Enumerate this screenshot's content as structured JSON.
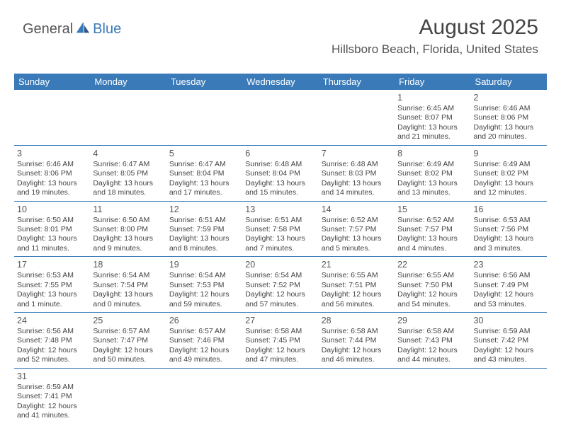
{
  "logo": {
    "part1": "General",
    "part2": "Blue"
  },
  "header": {
    "title": "August 2025",
    "location": "Hillsboro Beach, Florida, United States"
  },
  "colors": {
    "header_bg": "#3a7ab8",
    "header_fg": "#ffffff",
    "cell_border": "#3a7ab8",
    "text": "#444444",
    "logo_gray": "#555555",
    "logo_blue": "#3a7ab8",
    "page_bg": "#ffffff"
  },
  "typography": {
    "title_fontsize": 30,
    "location_fontsize": 17,
    "header_cell_fontsize": 13,
    "daynum_fontsize": 12.5,
    "body_fontsize": 10.5
  },
  "calendar": {
    "columns": [
      "Sunday",
      "Monday",
      "Tuesday",
      "Wednesday",
      "Thursday",
      "Friday",
      "Saturday"
    ],
    "weeks": [
      [
        null,
        null,
        null,
        null,
        null,
        {
          "day": "1",
          "sunrise": "Sunrise: 6:45 AM",
          "sunset": "Sunset: 8:07 PM",
          "daylight": "Daylight: 13 hours and 21 minutes."
        },
        {
          "day": "2",
          "sunrise": "Sunrise: 6:46 AM",
          "sunset": "Sunset: 8:06 PM",
          "daylight": "Daylight: 13 hours and 20 minutes."
        }
      ],
      [
        {
          "day": "3",
          "sunrise": "Sunrise: 6:46 AM",
          "sunset": "Sunset: 8:06 PM",
          "daylight": "Daylight: 13 hours and 19 minutes."
        },
        {
          "day": "4",
          "sunrise": "Sunrise: 6:47 AM",
          "sunset": "Sunset: 8:05 PM",
          "daylight": "Daylight: 13 hours and 18 minutes."
        },
        {
          "day": "5",
          "sunrise": "Sunrise: 6:47 AM",
          "sunset": "Sunset: 8:04 PM",
          "daylight": "Daylight: 13 hours and 17 minutes."
        },
        {
          "day": "6",
          "sunrise": "Sunrise: 6:48 AM",
          "sunset": "Sunset: 8:04 PM",
          "daylight": "Daylight: 13 hours and 15 minutes."
        },
        {
          "day": "7",
          "sunrise": "Sunrise: 6:48 AM",
          "sunset": "Sunset: 8:03 PM",
          "daylight": "Daylight: 13 hours and 14 minutes."
        },
        {
          "day": "8",
          "sunrise": "Sunrise: 6:49 AM",
          "sunset": "Sunset: 8:02 PM",
          "daylight": "Daylight: 13 hours and 13 minutes."
        },
        {
          "day": "9",
          "sunrise": "Sunrise: 6:49 AM",
          "sunset": "Sunset: 8:02 PM",
          "daylight": "Daylight: 13 hours and 12 minutes."
        }
      ],
      [
        {
          "day": "10",
          "sunrise": "Sunrise: 6:50 AM",
          "sunset": "Sunset: 8:01 PM",
          "daylight": "Daylight: 13 hours and 11 minutes."
        },
        {
          "day": "11",
          "sunrise": "Sunrise: 6:50 AM",
          "sunset": "Sunset: 8:00 PM",
          "daylight": "Daylight: 13 hours and 9 minutes."
        },
        {
          "day": "12",
          "sunrise": "Sunrise: 6:51 AM",
          "sunset": "Sunset: 7:59 PM",
          "daylight": "Daylight: 13 hours and 8 minutes."
        },
        {
          "day": "13",
          "sunrise": "Sunrise: 6:51 AM",
          "sunset": "Sunset: 7:58 PM",
          "daylight": "Daylight: 13 hours and 7 minutes."
        },
        {
          "day": "14",
          "sunrise": "Sunrise: 6:52 AM",
          "sunset": "Sunset: 7:57 PM",
          "daylight": "Daylight: 13 hours and 5 minutes."
        },
        {
          "day": "15",
          "sunrise": "Sunrise: 6:52 AM",
          "sunset": "Sunset: 7:57 PM",
          "daylight": "Daylight: 13 hours and 4 minutes."
        },
        {
          "day": "16",
          "sunrise": "Sunrise: 6:53 AM",
          "sunset": "Sunset: 7:56 PM",
          "daylight": "Daylight: 13 hours and 3 minutes."
        }
      ],
      [
        {
          "day": "17",
          "sunrise": "Sunrise: 6:53 AM",
          "sunset": "Sunset: 7:55 PM",
          "daylight": "Daylight: 13 hours and 1 minute."
        },
        {
          "day": "18",
          "sunrise": "Sunrise: 6:54 AM",
          "sunset": "Sunset: 7:54 PM",
          "daylight": "Daylight: 13 hours and 0 minutes."
        },
        {
          "day": "19",
          "sunrise": "Sunrise: 6:54 AM",
          "sunset": "Sunset: 7:53 PM",
          "daylight": "Daylight: 12 hours and 59 minutes."
        },
        {
          "day": "20",
          "sunrise": "Sunrise: 6:54 AM",
          "sunset": "Sunset: 7:52 PM",
          "daylight": "Daylight: 12 hours and 57 minutes."
        },
        {
          "day": "21",
          "sunrise": "Sunrise: 6:55 AM",
          "sunset": "Sunset: 7:51 PM",
          "daylight": "Daylight: 12 hours and 56 minutes."
        },
        {
          "day": "22",
          "sunrise": "Sunrise: 6:55 AM",
          "sunset": "Sunset: 7:50 PM",
          "daylight": "Daylight: 12 hours and 54 minutes."
        },
        {
          "day": "23",
          "sunrise": "Sunrise: 6:56 AM",
          "sunset": "Sunset: 7:49 PM",
          "daylight": "Daylight: 12 hours and 53 minutes."
        }
      ],
      [
        {
          "day": "24",
          "sunrise": "Sunrise: 6:56 AM",
          "sunset": "Sunset: 7:48 PM",
          "daylight": "Daylight: 12 hours and 52 minutes."
        },
        {
          "day": "25",
          "sunrise": "Sunrise: 6:57 AM",
          "sunset": "Sunset: 7:47 PM",
          "daylight": "Daylight: 12 hours and 50 minutes."
        },
        {
          "day": "26",
          "sunrise": "Sunrise: 6:57 AM",
          "sunset": "Sunset: 7:46 PM",
          "daylight": "Daylight: 12 hours and 49 minutes."
        },
        {
          "day": "27",
          "sunrise": "Sunrise: 6:58 AM",
          "sunset": "Sunset: 7:45 PM",
          "daylight": "Daylight: 12 hours and 47 minutes."
        },
        {
          "day": "28",
          "sunrise": "Sunrise: 6:58 AM",
          "sunset": "Sunset: 7:44 PM",
          "daylight": "Daylight: 12 hours and 46 minutes."
        },
        {
          "day": "29",
          "sunrise": "Sunrise: 6:58 AM",
          "sunset": "Sunset: 7:43 PM",
          "daylight": "Daylight: 12 hours and 44 minutes."
        },
        {
          "day": "30",
          "sunrise": "Sunrise: 6:59 AM",
          "sunset": "Sunset: 7:42 PM",
          "daylight": "Daylight: 12 hours and 43 minutes."
        }
      ],
      [
        {
          "day": "31",
          "sunrise": "Sunrise: 6:59 AM",
          "sunset": "Sunset: 7:41 PM",
          "daylight": "Daylight: 12 hours and 41 minutes."
        },
        null,
        null,
        null,
        null,
        null,
        null
      ]
    ]
  }
}
